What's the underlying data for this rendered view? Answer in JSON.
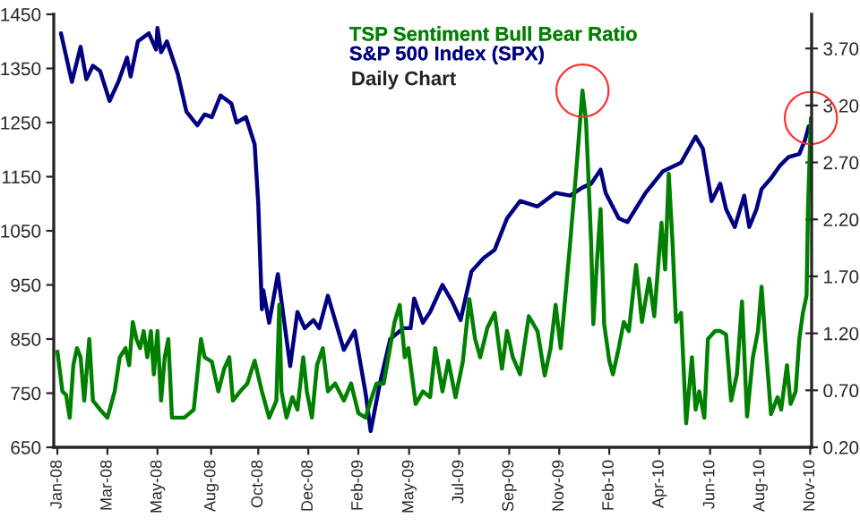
{
  "chart_data": {
    "type": "line",
    "subtitle": "Daily Chart",
    "xlim": [
      "2007-12-28",
      "2010-11-07"
    ],
    "xticks": [
      {
        "value": "2008-01-02",
        "label": "Jan-08"
      },
      {
        "value": "2008-03-11",
        "label": "Mar-08"
      },
      {
        "value": "2008-05-19",
        "label": "May-08"
      },
      {
        "value": "2008-08-01",
        "label": "Aug-08"
      },
      {
        "value": "2008-10-05",
        "label": "Oct-08"
      },
      {
        "value": "2008-12-13",
        "label": "Dec-08"
      },
      {
        "value": "2009-02-20",
        "label": "Feb-09"
      },
      {
        "value": "2009-05-01",
        "label": "May-09"
      },
      {
        "value": "2009-07-09",
        "label": "Jul-09"
      },
      {
        "value": "2009-09-16",
        "label": "Sep-09"
      },
      {
        "value": "2009-11-24",
        "label": "Nov-09"
      },
      {
        "value": "2010-02-01",
        "label": "Feb-10"
      },
      {
        "value": "2010-04-11",
        "label": "Apr-10"
      },
      {
        "value": "2010-06-20",
        "label": "Jun-10"
      },
      {
        "value": "2010-08-28",
        "label": "Aug-10"
      },
      {
        "value": "2010-11-05",
        "label": "Nov-10"
      }
    ],
    "ylim": [
      650,
      1450
    ],
    "yticks": [
      650,
      750,
      850,
      950,
      1050,
      1150,
      1250,
      1350,
      1450
    ],
    "y2lim": [
      0.2,
      4.0
    ],
    "y2ticks": [
      {
        "value": 0.2,
        "label": "0.20"
      },
      {
        "value": 0.7,
        "label": "0.70"
      },
      {
        "value": 1.2,
        "label": "1.20"
      },
      {
        "value": 1.7,
        "label": "1.70"
      },
      {
        "value": 2.2,
        "label": "2.20"
      },
      {
        "value": 2.7,
        "label": "2.70"
      },
      {
        "value": 3.2,
        "label": "3.20"
      },
      {
        "value": 3.7,
        "label": "3.70"
      }
    ],
    "legend": "top",
    "grid": false,
    "series": [
      {
        "name": "TSP Sentiment Bull Bear Ratio",
        "color": "#008000",
        "axis": "y2",
        "x": [
          "2008-01-02",
          "2008-01-09",
          "2008-01-14",
          "2008-01-19",
          "2008-01-24",
          "2008-01-29",
          "2008-02-03",
          "2008-02-08",
          "2008-02-15",
          "2008-02-20",
          "2008-03-01",
          "2008-03-11",
          "2008-03-21",
          "2008-03-28",
          "2008-04-05",
          "2008-04-10",
          "2008-04-15",
          "2008-04-20",
          "2008-04-25",
          "2008-04-30",
          "2008-05-05",
          "2008-05-10",
          "2008-05-14",
          "2008-05-19",
          "2008-05-24",
          "2008-05-29",
          "2008-06-03",
          "2008-06-08",
          "2008-06-16",
          "2008-06-25",
          "2008-07-08",
          "2008-07-18",
          "2008-07-23",
          "2008-08-02",
          "2008-08-11",
          "2008-08-19",
          "2008-08-26",
          "2008-08-31",
          "2008-09-10",
          "2008-09-20",
          "2008-09-30",
          "2008-10-10",
          "2008-10-20",
          "2008-10-30",
          "2008-11-03",
          "2008-11-06",
          "2008-11-13",
          "2008-11-21",
          "2008-11-28",
          "2008-12-06",
          "2008-12-11",
          "2008-12-18",
          "2008-12-25",
          "2009-01-02",
          "2009-01-09",
          "2009-01-19",
          "2009-01-31",
          "2009-02-10",
          "2009-02-20",
          "2009-03-02",
          "2009-03-09",
          "2009-03-17",
          "2009-03-27",
          "2009-04-11",
          "2009-04-18",
          "2009-04-25",
          "2009-04-30",
          "2009-05-10",
          "2009-05-20",
          "2009-05-30",
          "2009-06-06",
          "2009-06-16",
          "2009-06-24",
          "2009-07-04",
          "2009-07-14",
          "2009-07-23",
          "2009-07-31",
          "2009-08-07",
          "2009-08-17",
          "2009-08-27",
          "2009-09-06",
          "2009-09-13",
          "2009-09-21",
          "2009-10-01",
          "2009-10-13",
          "2009-10-25",
          "2009-11-04",
          "2009-11-12",
          "2009-11-19",
          "2009-11-26",
          "2009-12-09",
          "2009-12-19",
          "2009-12-26",
          "2009-12-31",
          "2010-01-07",
          "2010-01-10",
          "2010-01-15",
          "2010-01-20",
          "2010-01-25",
          "2010-02-01",
          "2010-02-06",
          "2010-02-14",
          "2010-02-21",
          "2010-02-28",
          "2010-03-10",
          "2010-03-18",
          "2010-03-28",
          "2010-04-04",
          "2010-04-14",
          "2010-04-19",
          "2010-04-24",
          "2010-04-29",
          "2010-05-04",
          "2010-05-11",
          "2010-05-18",
          "2010-05-26",
          "2010-05-31",
          "2010-06-05",
          "2010-06-12",
          "2010-06-17",
          "2010-06-27",
          "2010-07-04",
          "2010-07-12",
          "2010-07-19",
          "2010-07-27",
          "2010-08-03",
          "2010-08-10",
          "2010-08-18",
          "2010-08-25",
          "2010-08-30",
          "2010-09-04",
          "2010-09-12",
          "2010-09-21",
          "2010-09-26",
          "2010-10-04",
          "2010-10-09",
          "2010-10-16",
          "2010-10-21",
          "2010-10-26",
          "2010-10-31",
          "2010-11-02",
          "2010-11-05",
          "2010-11-06"
        ],
        "values": [
          1.04,
          0.69,
          0.66,
          0.46,
          0.92,
          1.07,
          0.99,
          0.61,
          1.15,
          0.61,
          0.53,
          0.46,
          0.69,
          0.99,
          1.07,
          0.92,
          1.3,
          1.15,
          1.07,
          1.22,
          0.99,
          1.22,
          0.84,
          1.22,
          0.61,
          0.99,
          1.15,
          0.46,
          0.46,
          0.46,
          0.53,
          1.15,
          0.99,
          0.95,
          0.69,
          0.89,
          0.99,
          0.61,
          0.69,
          0.76,
          0.96,
          0.69,
          0.46,
          0.61,
          1.45,
          0.69,
          0.46,
          0.64,
          0.53,
          0.99,
          0.69,
          0.46,
          0.92,
          1.07,
          0.69,
          0.76,
          0.61,
          0.76,
          0.5,
          0.46,
          0.61,
          0.76,
          0.76,
          1.3,
          1.45,
          0.99,
          1.07,
          0.58,
          0.69,
          0.64,
          1.07,
          0.69,
          0.96,
          0.64,
          0.95,
          1.5,
          1.15,
          0.99,
          1.25,
          1.38,
          0.89,
          1.22,
          0.99,
          0.84,
          1.35,
          1.22,
          0.83,
          1.07,
          1.45,
          1.07,
          1.99,
          2.75,
          3.33,
          3.06,
          1.99,
          1.28,
          1.83,
          2.29,
          1.28,
          0.96,
          0.84,
          1.07,
          1.3,
          1.22,
          1.8,
          1.3,
          1.68,
          1.35,
          2.17,
          1.76,
          2.6,
          2.02,
          1.3,
          1.38,
          0.41,
          0.99,
          0.53,
          0.69,
          0.46,
          1.15,
          1.22,
          1.22,
          1.19,
          0.61,
          0.84,
          1.48,
          0.47,
          0.99,
          1.22,
          1.61,
          1.15,
          0.49,
          0.64,
          0.53,
          0.92,
          0.58,
          0.69,
          1.15,
          1.38,
          1.53,
          2.29,
          2.9,
          3.09
        ]
      },
      {
        "name": "S&P 500 Index (SPX)",
        "color": "#000080",
        "x": [
          "2008-01-07",
          "2008-01-22",
          "2008-02-03",
          "2008-02-11",
          "2008-02-20",
          "2008-03-01",
          "2008-03-14",
          "2008-03-26",
          "2008-04-07",
          "2008-04-12",
          "2008-04-22",
          "2008-05-07",
          "2008-05-17",
          "2008-05-19",
          "2008-05-24",
          "2008-06-01",
          "2008-06-16",
          "2008-06-28",
          "2008-07-13",
          "2008-07-23",
          "2008-08-02",
          "2008-08-14",
          "2008-08-29",
          "2008-09-05",
          "2008-09-18",
          "2008-09-30",
          "2008-10-05",
          "2008-10-07",
          "2008-10-10",
          "2008-10-12",
          "2008-10-20",
          "2008-11-01",
          "2008-11-18",
          "2008-11-28",
          "2008-12-08",
          "2008-12-20",
          "2008-12-28",
          "2009-01-09",
          "2009-01-31",
          "2009-02-15",
          "2009-03-02",
          "2009-03-09",
          "2009-03-22",
          "2009-04-05",
          "2009-04-23",
          "2009-05-03",
          "2009-05-08",
          "2009-05-20",
          "2009-05-30",
          "2009-06-16",
          "2009-06-29",
          "2009-07-11",
          "2009-07-26",
          "2009-08-12",
          "2009-08-27",
          "2009-09-13",
          "2009-10-01",
          "2009-10-25",
          "2009-11-19",
          "2009-12-09",
          "2009-12-26",
          "2010-01-07",
          "2010-01-20",
          "2010-01-27",
          "2010-02-14",
          "2010-02-26",
          "2010-03-23",
          "2010-04-16",
          "2010-05-11",
          "2010-05-31",
          "2010-06-10",
          "2010-06-22",
          "2010-07-04",
          "2010-07-12",
          "2010-07-24",
          "2010-08-06",
          "2010-08-13",
          "2010-08-23",
          "2010-08-30",
          "2010-09-12",
          "2010-09-24",
          "2010-10-06",
          "2010-10-21",
          "2010-10-29",
          "2010-11-03"
        ],
        "values": [
          1415,
          1325,
          1390,
          1330,
          1355,
          1345,
          1290,
          1325,
          1370,
          1335,
          1400,
          1415,
          1385,
          1425,
          1380,
          1400,
          1340,
          1270,
          1245,
          1265,
          1260,
          1300,
          1285,
          1250,
          1260,
          1210,
          1100,
          1024,
          905,
          940,
          880,
          970,
          800,
          900,
          870,
          885,
          870,
          930,
          830,
          865,
          750,
          680,
          770,
          850,
          870,
          870,
          925,
          880,
          900,
          950,
          920,
          885,
          975,
          1000,
          1015,
          1073,
          1105,
          1095,
          1120,
          1115,
          1130,
          1137,
          1163,
          1120,
          1073,
          1066,
          1120,
          1160,
          1176,
          1224,
          1202,
          1105,
          1137,
          1090,
          1057,
          1115,
          1057,
          1090,
          1127,
          1147,
          1170,
          1186,
          1192,
          1218,
          1243
        ]
      }
    ]
  }
}
